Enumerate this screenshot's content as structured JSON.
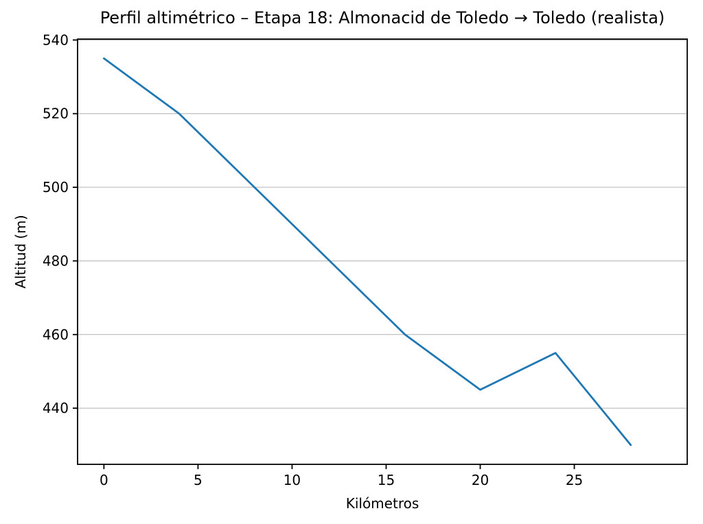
{
  "chart_data": {
    "type": "line",
    "title": "Perfil altimétrico – Etapa 18: Almonacid de Toledo → Toledo (realista)",
    "xlabel": "Kilómetros",
    "ylabel": "Altitud (m)",
    "x": [
      0,
      4,
      16,
      20,
      24,
      28
    ],
    "y": [
      535,
      520,
      460,
      445,
      455,
      430
    ],
    "series_name": "Altitud",
    "xticks": [
      0,
      5,
      10,
      15,
      20,
      25
    ],
    "yticks": [
      440,
      460,
      480,
      500,
      520,
      540
    ],
    "xlim": [
      -1.4,
      31.0
    ],
    "ylim": [
      424.75,
      540.25
    ],
    "grid": "horizontal",
    "legend": "none",
    "colors": {
      "line": "#1f77b4",
      "grid": "#b0b0b0",
      "axes": "#000000",
      "background": "#ffffff"
    }
  }
}
